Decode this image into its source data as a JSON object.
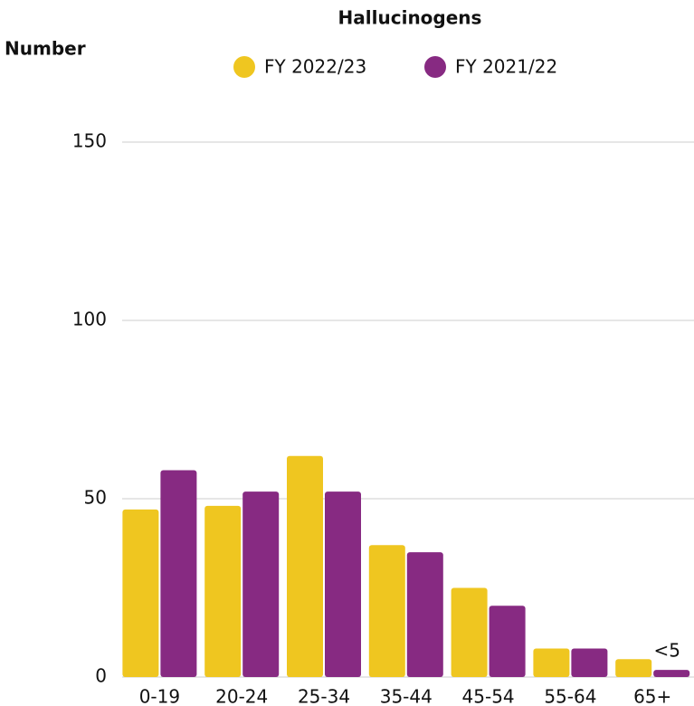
{
  "chart_data": {
    "type": "bar",
    "title": "Hallucinogens",
    "y_label": "Number",
    "categories": [
      "0-19",
      "20-24",
      "25-34",
      "35-44",
      "45-54",
      "55-64",
      "65+"
    ],
    "series": [
      {
        "name": "FY 2022/23",
        "color": "#EFC620",
        "values": [
          47,
          48,
          62,
          37,
          25,
          8,
          5
        ]
      },
      {
        "name": "FY 2021/22",
        "color": "#872A82",
        "values": [
          58,
          52,
          52,
          35,
          20,
          8,
          2
        ],
        "value_labels": [
          null,
          null,
          null,
          null,
          null,
          null,
          "<5"
        ]
      }
    ],
    "ylim": [
      0,
      150
    ],
    "yticks": [
      0,
      50,
      100,
      150
    ],
    "grid": true
  }
}
